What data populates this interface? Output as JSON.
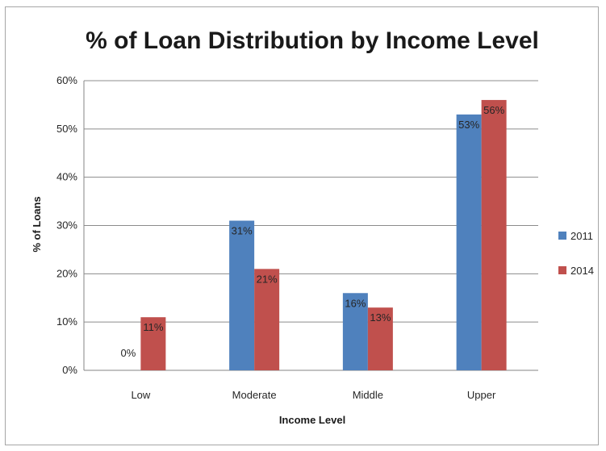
{
  "chart_data": {
    "type": "bar",
    "title": "% of Loan Distribution by Income Level",
    "xlabel": "Income Level",
    "ylabel": "% of Loans",
    "categories": [
      "Low",
      "Moderate",
      "Middle",
      "Upper"
    ],
    "ylim": [
      0,
      60
    ],
    "yticks": [
      0,
      10,
      20,
      30,
      40,
      50,
      60
    ],
    "ytick_labels": [
      "0%",
      "10%",
      "20%",
      "30%",
      "40%",
      "50%",
      "60%"
    ],
    "grid": true,
    "legend_position": "right",
    "series": [
      {
        "name": "2011",
        "color": "#4f81bd",
        "values": [
          0,
          31,
          16,
          53
        ],
        "labels": [
          "0%",
          "31%",
          "16%",
          "53%"
        ]
      },
      {
        "name": "2014",
        "color": "#c0504d",
        "values": [
          11,
          21,
          13,
          56
        ],
        "labels": [
          "11%",
          "21%",
          "13%",
          "56%"
        ]
      }
    ]
  }
}
